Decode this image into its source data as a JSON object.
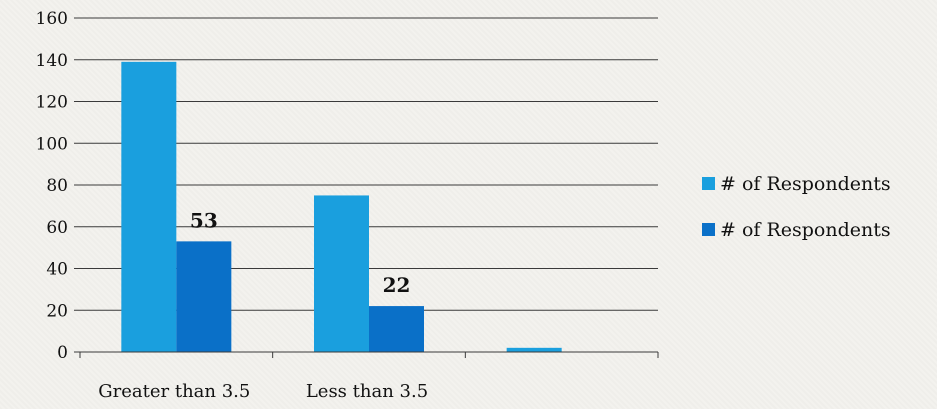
{
  "chart_data": {
    "type": "bar",
    "categories": [
      "Greater than 3.5",
      "Less than 3.5",
      ""
    ],
    "series": [
      {
        "name": "# of Respondents",
        "values": [
          139,
          75,
          2
        ],
        "color": "#1a9fde",
        "data_labels": [
          null,
          null,
          null
        ]
      },
      {
        "name": "# of Respondents",
        "values": [
          53,
          22,
          0
        ],
        "color": "#0a70c8",
        "data_labels": [
          "53",
          "22",
          null
        ]
      }
    ],
    "y_ticks": [
      "0",
      "20",
      "40",
      "60",
      "80",
      "100",
      "120",
      "140",
      "160"
    ],
    "ylim": [
      0,
      160
    ],
    "grid": true,
    "legend_position": "right"
  }
}
